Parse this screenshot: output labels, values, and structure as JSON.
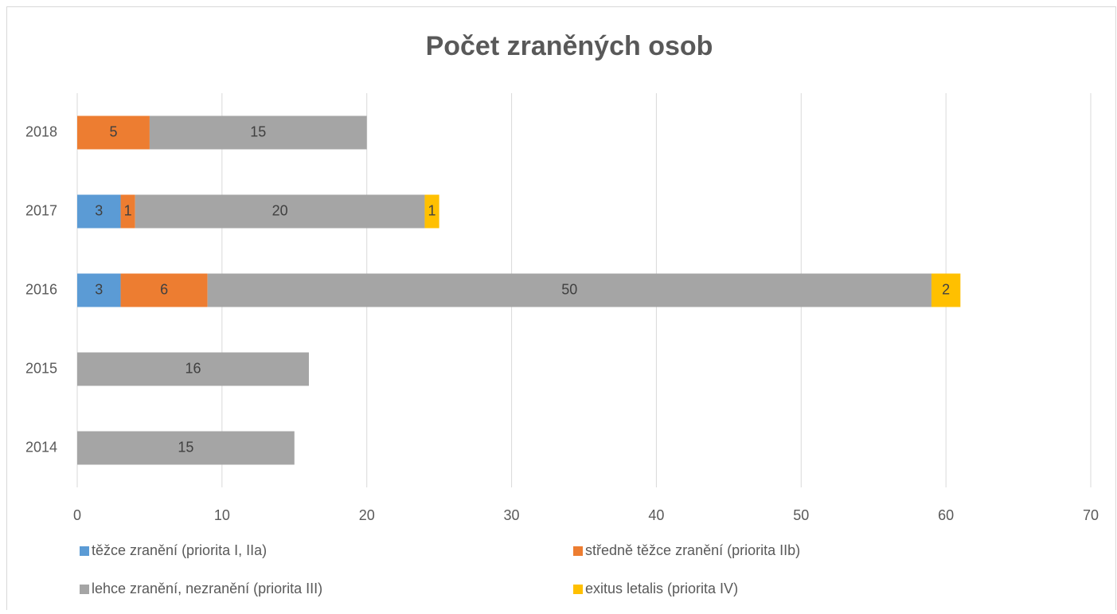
{
  "chart_data": {
    "type": "stacked-bar-horizontal",
    "title": "Počet zraněných osob",
    "categories": [
      "2014",
      "2015",
      "2016",
      "2017",
      "2018"
    ],
    "series": [
      {
        "name": "těžce zranění (priorita I, IIa)",
        "color": "#5b9bd5",
        "values": [
          null,
          null,
          3,
          3,
          null
        ]
      },
      {
        "name": "středně těžce zranění (priorita IIb)",
        "color": "#ed7d31",
        "values": [
          null,
          null,
          6,
          1,
          5
        ]
      },
      {
        "name": "lehce zranění, nezranění (priorita III)",
        "color": "#a5a5a5",
        "values": [
          15,
          16,
          50,
          20,
          15
        ]
      },
      {
        "name": "exitus letalis (priorita IV)",
        "color": "#ffc000",
        "values": [
          null,
          null,
          2,
          1,
          null
        ]
      }
    ],
    "xlim": [
      0,
      70
    ],
    "xticks": [
      0,
      10,
      20,
      30,
      40,
      50,
      60,
      70
    ],
    "grid": true,
    "legend": "bottom"
  }
}
